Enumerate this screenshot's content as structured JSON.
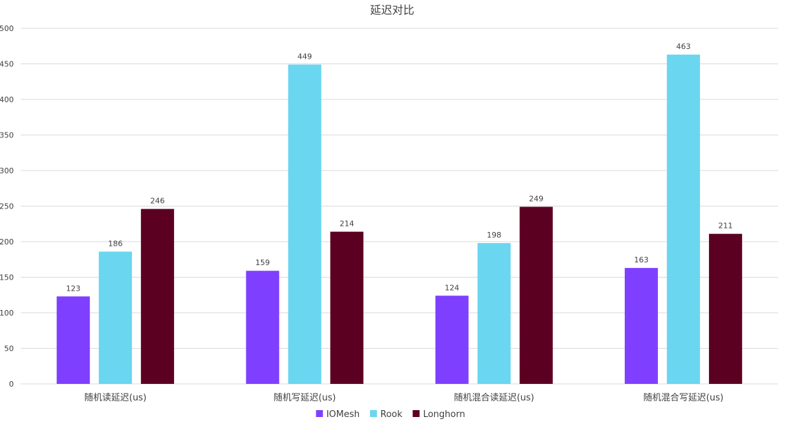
{
  "chart_data": {
    "type": "bar",
    "title": "延迟对比",
    "categories": [
      "随机读延迟(us)",
      "随机写延迟(us)",
      "随机混合读延迟(us)",
      "随机混合写延迟(us)"
    ],
    "series": [
      {
        "name": "IOMesh",
        "color": "#7f3fff",
        "values": [
          123,
          159,
          124,
          163
        ]
      },
      {
        "name": "Rook",
        "color": "#6ad6f0",
        "values": [
          186,
          449,
          198,
          463
        ]
      },
      {
        "name": "Longhorn",
        "color": "#5c0022",
        "values": [
          246,
          214,
          249,
          211
        ]
      }
    ],
    "ylim": [
      0,
      500
    ],
    "yticks": [
      0,
      50,
      100,
      150,
      200,
      250,
      300,
      350,
      400,
      450,
      500
    ],
    "grid": true,
    "legend_position": "bottom-center",
    "data_labels": true
  }
}
